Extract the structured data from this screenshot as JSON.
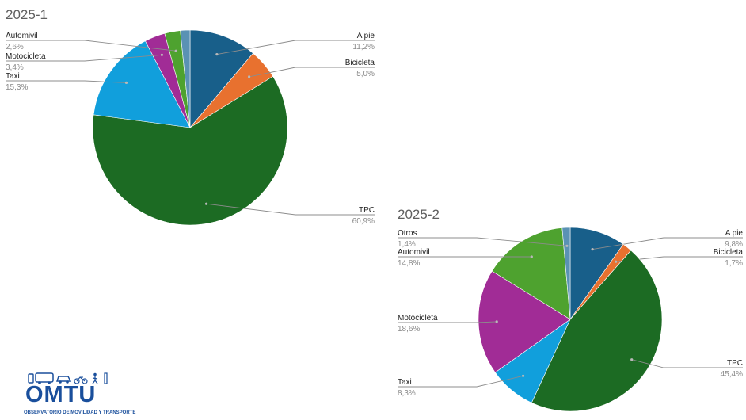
{
  "chart_data": [
    {
      "type": "pie",
      "title": "2025-1",
      "slices": [
        {
          "label": "A pie",
          "value": 11.2,
          "value_label": "11,2%",
          "color": "#185f8a"
        },
        {
          "label": "Bicicleta",
          "value": 5.0,
          "value_label": "5,0%",
          "color": "#e8712f"
        },
        {
          "label": "TPC",
          "value": 60.9,
          "value_label": "60,9%",
          "color": "#1c6b23"
        },
        {
          "label": "Taxi",
          "value": 15.3,
          "value_label": "15,3%",
          "color": "#119fdc"
        },
        {
          "label": "Motocicleta",
          "value": 3.4,
          "value_label": "3,4%",
          "color": "#a12c96"
        },
        {
          "label": "Automivil",
          "value": 2.6,
          "value_label": "2,6%",
          "color": "#4ea22f"
        },
        {
          "label": "",
          "value": 1.6,
          "value_label": "",
          "color": "#5a92b4"
        }
      ]
    },
    {
      "type": "pie",
      "title": "2025-2",
      "slices": [
        {
          "label": "A pie",
          "value": 9.8,
          "value_label": "9,8%",
          "color": "#185f8a"
        },
        {
          "label": "Bicicleta",
          "value": 1.7,
          "value_label": "1,7%",
          "color": "#e8712f"
        },
        {
          "label": "TPC",
          "value": 45.4,
          "value_label": "45,4%",
          "color": "#1c6b23"
        },
        {
          "label": "Taxi",
          "value": 8.3,
          "value_label": "8,3%",
          "color": "#119fdc"
        },
        {
          "label": "Motocicleta",
          "value": 18.6,
          "value_label": "18,6%",
          "color": "#a12c96"
        },
        {
          "label": "Automivil",
          "value": 14.8,
          "value_label": "14,8%",
          "color": "#4ea22f"
        },
        {
          "label": "Otros",
          "value": 1.4,
          "value_label": "1,4%",
          "color": "#5a92b4"
        }
      ]
    }
  ],
  "logo": {
    "name": "OMTU",
    "subtitle": "OBSERVATORIO DE MOVILIDAD Y TRANSPORTE"
  }
}
